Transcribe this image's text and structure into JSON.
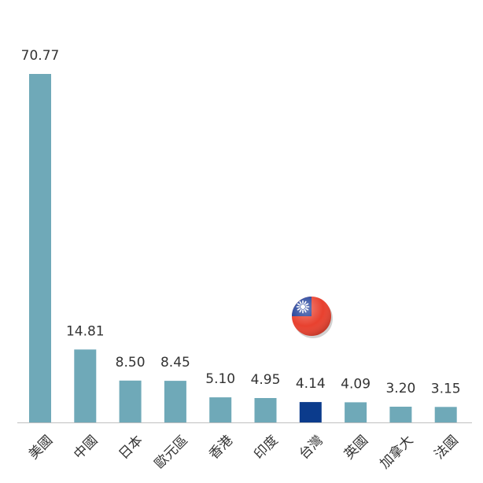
{
  "chart_data": {
    "type": "bar",
    "categories": [
      "美國",
      "中國",
      "日本",
      "歐元區",
      "香港",
      "印度",
      "台灣",
      "英國",
      "加拿大",
      "法國"
    ],
    "values": [
      70.77,
      14.81,
      8.5,
      8.45,
      5.1,
      4.95,
      4.14,
      4.09,
      3.2,
      3.15
    ],
    "value_labels": [
      "70.77",
      "14.81",
      "8.50",
      "8.45",
      "5.10",
      "4.95",
      "4.14",
      "4.09",
      "3.20",
      "3.15"
    ],
    "highlight_index": 6,
    "colors": {
      "bar": "#6fa9b8",
      "highlight": "#0b3b8c",
      "axis": "#bfbfbf",
      "text": "#333333",
      "flag_red": "#e8412f",
      "flag_blue": "#1f3f9a",
      "flag_sun": "#ffffff"
    },
    "title": "",
    "xlabel": "",
    "ylabel": "",
    "ylim": [
      0,
      75
    ],
    "grid": false,
    "legend": false,
    "icon": "taiwan-flag-icon"
  }
}
